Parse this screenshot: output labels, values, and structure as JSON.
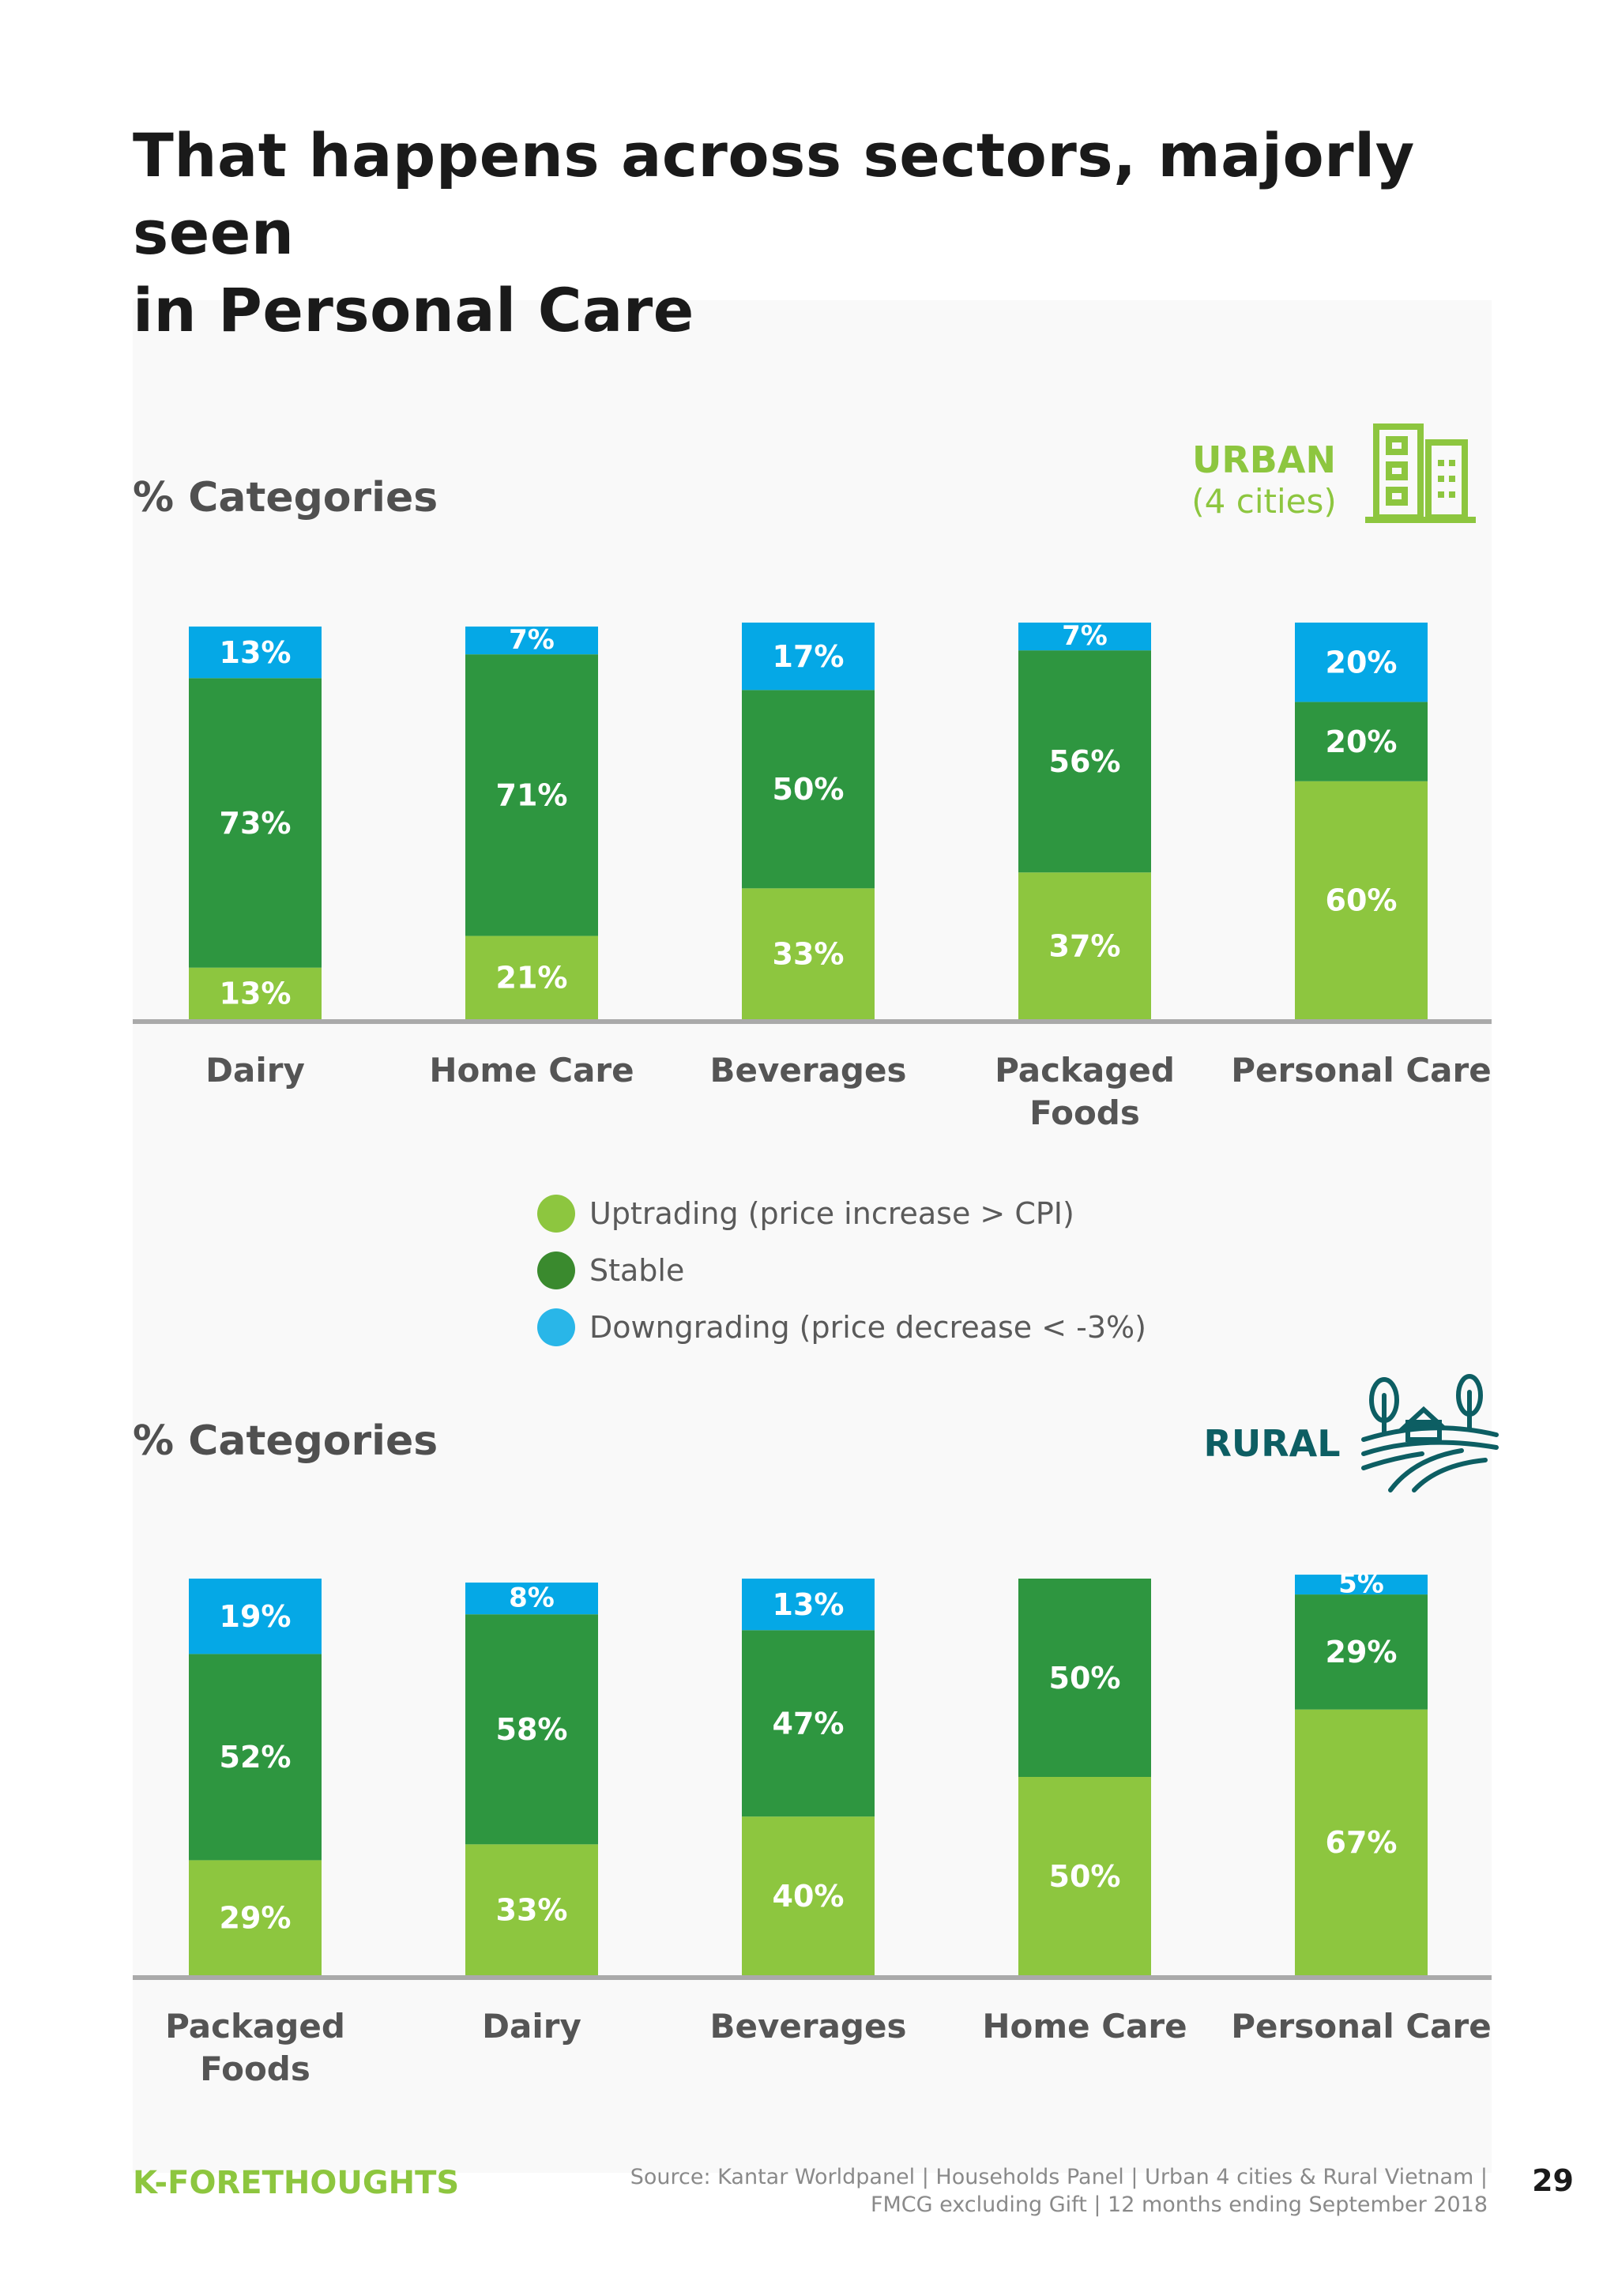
{
  "page": {
    "title": "That happens across sectors, majorly seen\nin Personal Care",
    "brand": "K-FORETHOUGHTS",
    "source": "Source: Kantar Worldpanel | Households Panel | Urban 4 cities & Rural Vietnam |\nFMCG excluding Gift | 12 months ending September 2018",
    "page_number": "29"
  },
  "urban": {
    "section_title": "% Categories",
    "area_label": "URBAN",
    "area_sub": "(4 cities)",
    "icon": "city-buildings-icon"
  },
  "rural": {
    "section_title": "% Categories",
    "area_label": "RURAL",
    "icon": "farm-landscape-icon"
  },
  "legend": [
    {
      "label": "Uptrading (price increase > CPI)",
      "color": "#8dc63f"
    },
    {
      "label": "Stable",
      "color": "#3a8a2e"
    },
    {
      "label": "Downgrading (price decrease < -3%)",
      "color": "#29b6e8"
    }
  ],
  "colors": {
    "uptrading": "#8dc63f",
    "stable": "#2e9640",
    "downgrading": "#05a8e6",
    "axis": "#aaaaaa",
    "bar_label": "#ffffff"
  },
  "chart_data": [
    {
      "type": "bar",
      "stacked": true,
      "title": "",
      "categories": [
        "Dairy",
        "Home Care",
        "Beverages",
        "Packaged\nFoods",
        "Personal Care"
      ],
      "series": [
        {
          "name": "Uptrading (price increase > CPI)",
          "values": [
            13,
            21,
            33,
            37,
            60
          ]
        },
        {
          "name": "Stable",
          "values": [
            73,
            71,
            50,
            56,
            20
          ]
        },
        {
          "name": "Downgrading (price decrease < -3%)",
          "values": [
            13,
            7,
            17,
            7,
            20
          ]
        }
      ],
      "labels": [
        [
          "13%",
          "21%",
          "33%",
          "37%",
          "60%"
        ],
        [
          "73%",
          "71%",
          "50%",
          "56%",
          "20%"
        ],
        [
          "13%",
          "7%",
          "17%",
          "7%",
          "20%"
        ]
      ],
      "ylim": [
        0,
        100
      ]
    },
    {
      "type": "bar",
      "stacked": true,
      "title": "",
      "categories": [
        "Packaged\nFoods",
        "Dairy",
        "Beverages",
        "Home Care",
        "Personal Care"
      ],
      "series": [
        {
          "name": "Uptrading (price increase > CPI)",
          "values": [
            29,
            33,
            40,
            50,
            67
          ]
        },
        {
          "name": "Stable",
          "values": [
            52,
            58,
            47,
            50,
            29
          ]
        },
        {
          "name": "Downgrading (price decrease < -3%)",
          "values": [
            19,
            8,
            13,
            0,
            5
          ]
        }
      ],
      "labels": [
        [
          "29%",
          "33%",
          "40%",
          "50%",
          "67%"
        ],
        [
          "52%",
          "58%",
          "47%",
          "50%",
          "29%"
        ],
        [
          "19%",
          "8%",
          "13%",
          "",
          "5%"
        ]
      ],
      "ylim": [
        0,
        100
      ]
    }
  ]
}
